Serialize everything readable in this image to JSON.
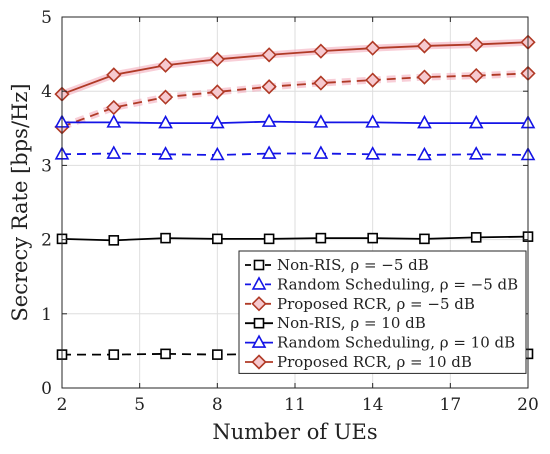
{
  "chart_data": {
    "type": "line",
    "xlabel": "Number of UEs",
    "ylabel": "Secrecy Rate [bps/Hz]",
    "xlim": [
      2,
      20
    ],
    "ylim": [
      0,
      5
    ],
    "xticks": [
      2,
      5,
      8,
      11,
      14,
      17,
      20
    ],
    "yticks": [
      0,
      1,
      2,
      3,
      4,
      5
    ],
    "grid": true,
    "legend_position": "bottom-right",
    "x": [
      2,
      4,
      6,
      8,
      10,
      12,
      14,
      16,
      18,
      20
    ],
    "series": [
      {
        "name": "Non-RIS, ρ = −5 dB",
        "color": "#000000",
        "dash": "dashed",
        "marker": "square",
        "values": [
          0.45,
          0.45,
          0.46,
          0.45,
          0.46,
          0.46,
          0.46,
          0.45,
          0.46,
          0.46
        ]
      },
      {
        "name": "Random Scheduling, ρ = −5 dB",
        "color": "#1414e6",
        "dash": "dashed",
        "marker": "triangle",
        "values": [
          3.15,
          3.16,
          3.15,
          3.14,
          3.16,
          3.16,
          3.15,
          3.14,
          3.15,
          3.14
        ]
      },
      {
        "name": "Proposed RCR, ρ = −5 dB",
        "color": "#b03a26",
        "dash": "dashed",
        "marker": "diamond",
        "values": [
          3.52,
          3.78,
          3.92,
          3.99,
          4.06,
          4.11,
          4.15,
          4.19,
          4.21,
          4.24
        ]
      },
      {
        "name": "Non-RIS, ρ = 10 dB",
        "color": "#000000",
        "dash": "solid",
        "marker": "square",
        "values": [
          2.01,
          1.99,
          2.02,
          2.01,
          2.01,
          2.02,
          2.02,
          2.01,
          2.03,
          2.04
        ]
      },
      {
        "name": "Random Scheduling, ρ = 10 dB",
        "color": "#1414e6",
        "dash": "solid",
        "marker": "triangle",
        "values": [
          3.58,
          3.58,
          3.57,
          3.57,
          3.59,
          3.58,
          3.58,
          3.57,
          3.57,
          3.57
        ]
      },
      {
        "name": "Proposed RCR, ρ = 10 dB",
        "color": "#b03a26",
        "dash": "solid",
        "marker": "diamond",
        "values": [
          3.96,
          4.22,
          4.35,
          4.43,
          4.49,
          4.54,
          4.58,
          4.61,
          4.63,
          4.66
        ]
      }
    ]
  }
}
